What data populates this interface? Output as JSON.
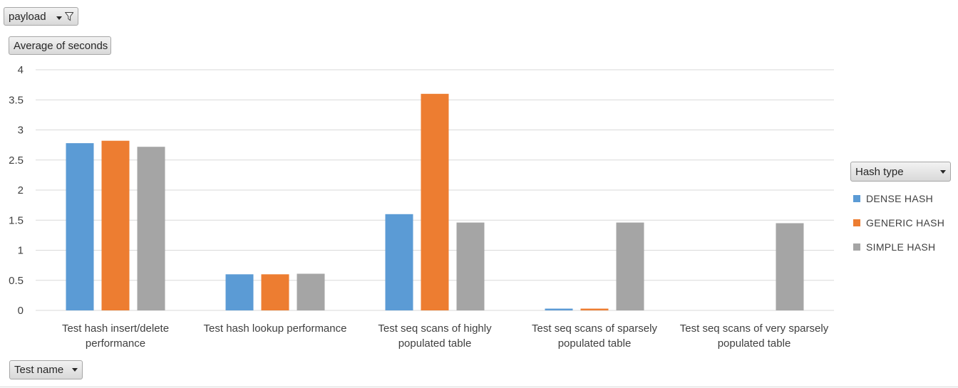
{
  "pivot": {
    "filter_field": "payload",
    "filter_icon": "funnel-icon",
    "value_field": "Average of seconds",
    "axis_field": "Test name",
    "legend_field": "Hash type"
  },
  "colors": {
    "DENSE HASH": "#5b9bd5",
    "GENERIC HASH": "#ed7d31",
    "SIMPLE HASH": "#a5a5a5",
    "gridline": "#d9d9d9"
  },
  "chart_data": {
    "type": "bar",
    "categories": [
      [
        "Test hash insert/delete",
        "performance"
      ],
      [
        "Test hash lookup performance"
      ],
      [
        "Test seq scans of highly",
        "populated table"
      ],
      [
        "Test seq scans of sparsely",
        "populated table"
      ],
      [
        "Test seq scans of very sparsely",
        "populated table"
      ]
    ],
    "series": [
      {
        "name": "DENSE HASH",
        "values": [
          2.78,
          0.6,
          1.6,
          0.03,
          0
        ]
      },
      {
        "name": "GENERIC HASH",
        "values": [
          2.82,
          0.6,
          3.6,
          0.03,
          0
        ]
      },
      {
        "name": "SIMPLE HASH",
        "values": [
          2.72,
          0.61,
          1.46,
          1.46,
          1.45
        ]
      }
    ],
    "yticks": [
      "0",
      "0.5",
      "1",
      "1.5",
      "2",
      "2.5",
      "3",
      "3.5",
      "4"
    ],
    "ylim": [
      0,
      4
    ],
    "grid": true,
    "legend_position": "right"
  }
}
